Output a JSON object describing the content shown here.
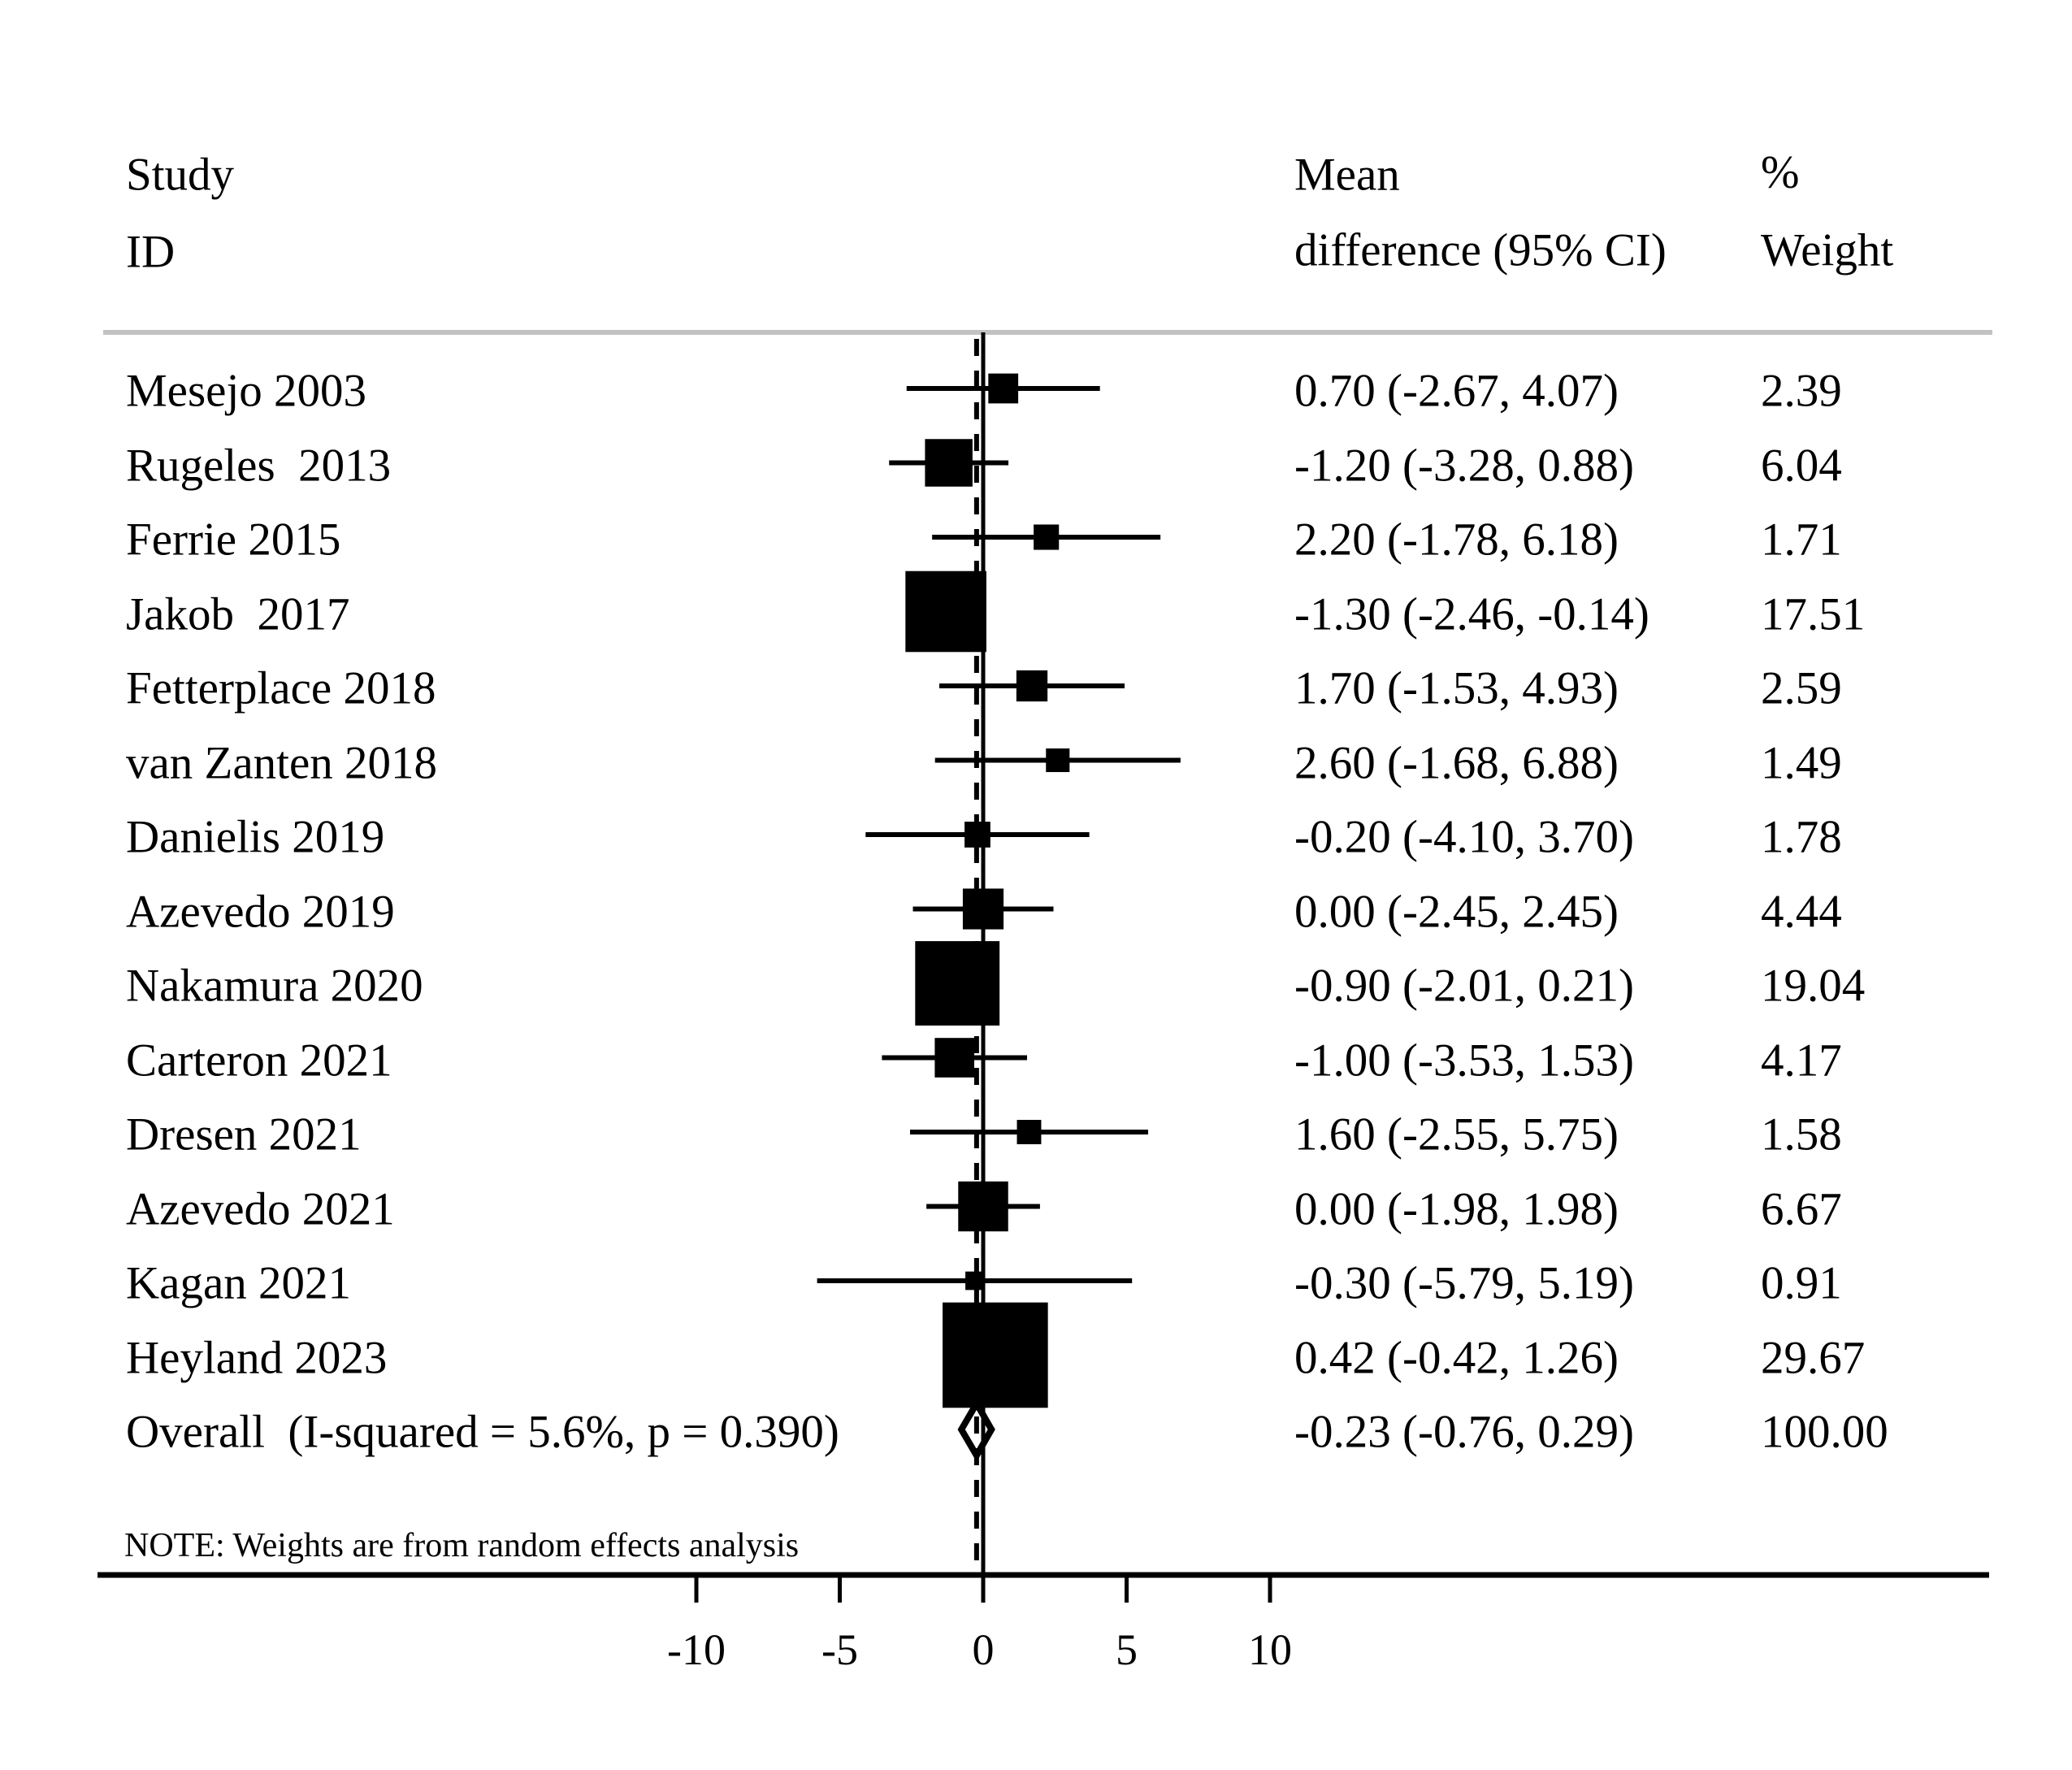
{
  "header": {
    "study_line1": "Study",
    "study_line2": "ID",
    "mean_line1": "Mean",
    "mean_line2": "difference (95% CI)",
    "weight_line1": "%",
    "weight_line2": "Weight"
  },
  "note": "NOTE: Weights are from random effects analysis",
  "colors": {
    "ink": "#000000",
    "header_rule": "#c2c2c2",
    "background": "#ffffff"
  },
  "chart_data": {
    "type": "forest",
    "title": "",
    "xlabel": "",
    "axis": {
      "ticks": [
        "-10",
        "-5",
        "0",
        "5",
        "10"
      ],
      "tick_values": [
        -10,
        -5,
        0,
        5,
        10
      ],
      "zero_line_value": 0,
      "overall_line_value": -0.23
    },
    "studies": [
      {
        "id": "Mesejo 2003",
        "mean": 0.7,
        "ci_low": -2.67,
        "ci_high": 4.07,
        "weight": 2.39,
        "ci_label": "0.70 (-2.67, 4.07)",
        "weight_label": "2.39"
      },
      {
        "id": "Rugeles  2013",
        "mean": -1.2,
        "ci_low": -3.28,
        "ci_high": 0.88,
        "weight": 6.04,
        "ci_label": "-1.20 (-3.28, 0.88)",
        "weight_label": "6.04"
      },
      {
        "id": "Ferrie 2015",
        "mean": 2.2,
        "ci_low": -1.78,
        "ci_high": 6.18,
        "weight": 1.71,
        "ci_label": "2.20 (-1.78, 6.18)",
        "weight_label": "1.71"
      },
      {
        "id": "Jakob  2017",
        "mean": -1.3,
        "ci_low": -2.46,
        "ci_high": -0.14,
        "weight": 17.51,
        "ci_label": "-1.30 (-2.46, -0.14)",
        "weight_label": "17.51"
      },
      {
        "id": "Fetterplace 2018",
        "mean": 1.7,
        "ci_low": -1.53,
        "ci_high": 4.93,
        "weight": 2.59,
        "ci_label": "1.70 (-1.53, 4.93)",
        "weight_label": "2.59"
      },
      {
        "id": "van Zanten 2018",
        "mean": 2.6,
        "ci_low": -1.68,
        "ci_high": 6.88,
        "weight": 1.49,
        "ci_label": "2.60 (-1.68, 6.88)",
        "weight_label": "1.49"
      },
      {
        "id": "Danielis 2019",
        "mean": -0.2,
        "ci_low": -4.1,
        "ci_high": 3.7,
        "weight": 1.78,
        "ci_label": "-0.20 (-4.10, 3.70)",
        "weight_label": "1.78"
      },
      {
        "id": "Azevedo 2019",
        "mean": 0.0,
        "ci_low": -2.45,
        "ci_high": 2.45,
        "weight": 4.44,
        "ci_label": "0.00 (-2.45, 2.45)",
        "weight_label": "4.44"
      },
      {
        "id": "Nakamura 2020",
        "mean": -0.9,
        "ci_low": -2.01,
        "ci_high": 0.21,
        "weight": 19.04,
        "ci_label": "-0.90 (-2.01, 0.21)",
        "weight_label": "19.04"
      },
      {
        "id": "Carteron 2021",
        "mean": -1.0,
        "ci_low": -3.53,
        "ci_high": 1.53,
        "weight": 4.17,
        "ci_label": "-1.00 (-3.53, 1.53)",
        "weight_label": "4.17"
      },
      {
        "id": "Dresen 2021",
        "mean": 1.6,
        "ci_low": -2.55,
        "ci_high": 5.75,
        "weight": 1.58,
        "ci_label": "1.60 (-2.55, 5.75)",
        "weight_label": "1.58"
      },
      {
        "id": "Azevedo 2021",
        "mean": 0.0,
        "ci_low": -1.98,
        "ci_high": 1.98,
        "weight": 6.67,
        "ci_label": "0.00 (-1.98, 1.98)",
        "weight_label": "6.67"
      },
      {
        "id": "Kagan 2021",
        "mean": -0.3,
        "ci_low": -5.79,
        "ci_high": 5.19,
        "weight": 0.91,
        "ci_label": "-0.30 (-5.79, 5.19)",
        "weight_label": "0.91"
      },
      {
        "id": "Heyland 2023",
        "mean": 0.42,
        "ci_low": -0.42,
        "ci_high": 1.26,
        "weight": 29.67,
        "ci_label": "0.42 (-0.42, 1.26)",
        "weight_label": "29.67"
      }
    ],
    "overall": {
      "id": "Overall  (I-squared = 5.6%, p = 0.390)",
      "mean": -0.23,
      "ci_low": -0.76,
      "ci_high": 0.29,
      "weight": 100.0,
      "ci_label": "-0.23 (-0.76, 0.29)",
      "weight_label": "100.00"
    }
  }
}
